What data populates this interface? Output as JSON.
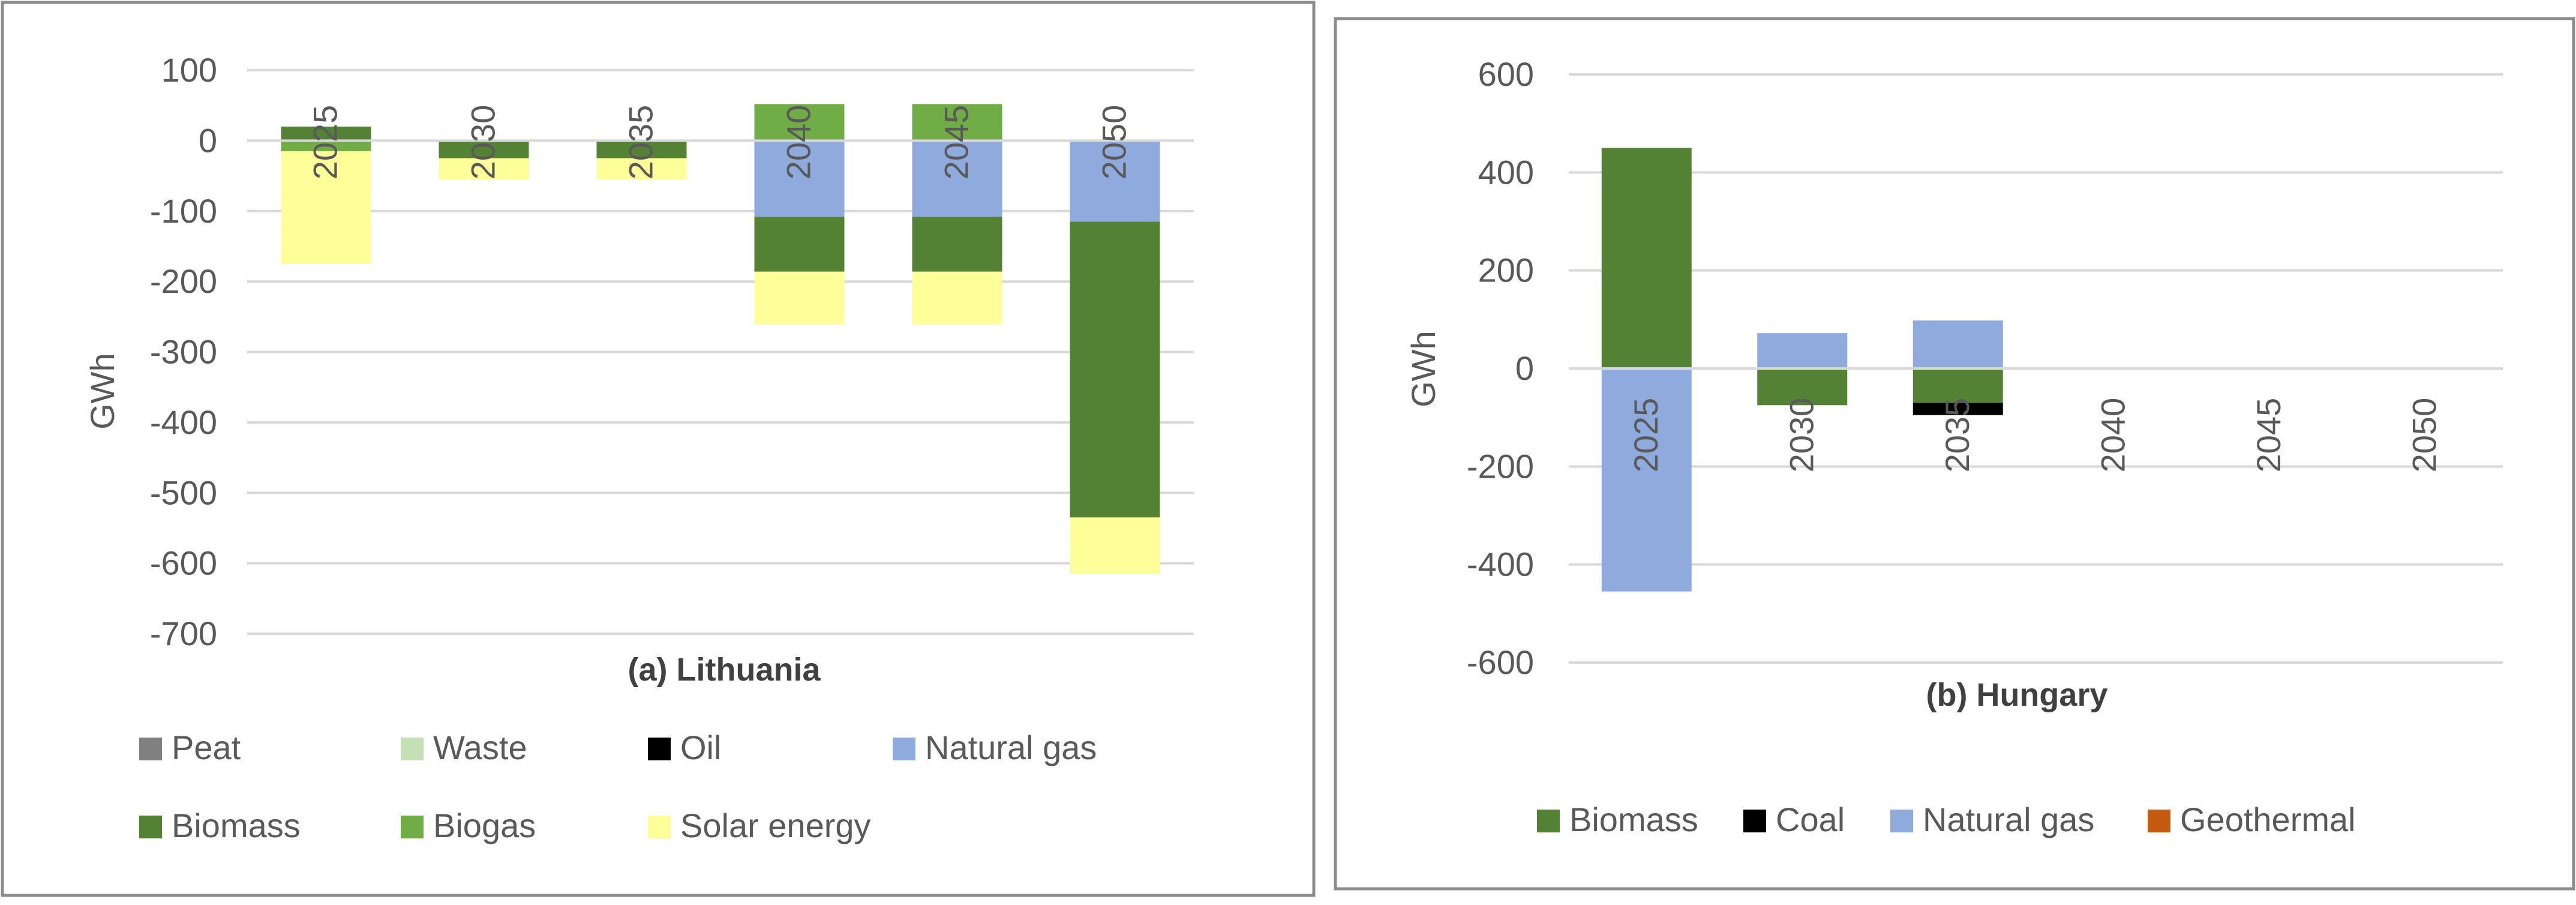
{
  "chart_data": [
    {
      "type": "bar",
      "stacked": true,
      "title": "(a) Lithuania",
      "xlabel": "",
      "ylabel": "GWh",
      "ylim": [
        -700,
        100
      ],
      "yticks": [
        100,
        0,
        -100,
        -200,
        -300,
        -400,
        -500,
        -600,
        -700
      ],
      "categories": [
        "2025",
        "2030",
        "2035",
        "2040",
        "2045",
        "2050"
      ],
      "series": [
        {
          "name": "Peat",
          "color": "#808080",
          "values": [
            0,
            0,
            0,
            0,
            0,
            0
          ]
        },
        {
          "name": "Waste",
          "color": "#c5e0b4",
          "values": [
            0,
            0,
            0,
            0,
            0,
            0
          ]
        },
        {
          "name": "Oil",
          "color": "#000000",
          "values": [
            0,
            0,
            0,
            0,
            0,
            0
          ]
        },
        {
          "name": "Natural gas",
          "color": "#8faadc",
          "values": [
            0,
            0,
            0,
            -108,
            -108,
            -115
          ]
        },
        {
          "name": "Biomass",
          "color": "#548235",
          "values": [
            20,
            -25,
            -25,
            -78,
            -78,
            -420
          ]
        },
        {
          "name": "Biogas",
          "color": "#70ad47",
          "values": [
            -15,
            0,
            0,
            52,
            52,
            0
          ]
        },
        {
          "name": "Solar energy",
          "color": "#ffff99",
          "values": [
            -160,
            -30,
            -30,
            -75,
            -75,
            -80
          ]
        }
      ],
      "legend": "bottom"
    },
    {
      "type": "bar",
      "stacked": true,
      "title": "(b) Hungary",
      "xlabel": "",
      "ylabel": "GWh",
      "ylim": [
        -600,
        600
      ],
      "yticks": [
        600,
        400,
        200,
        0,
        -200,
        -400,
        -600
      ],
      "categories": [
        "2025",
        "2030",
        "2035",
        "2040",
        "2045",
        "2050"
      ],
      "series": [
        {
          "name": "Biomass",
          "color": "#548235",
          "values": [
            450,
            -75,
            -70,
            0,
            0,
            0
          ]
        },
        {
          "name": "Coal",
          "color": "#000000",
          "values": [
            0,
            0,
            -25,
            0,
            0,
            0
          ]
        },
        {
          "name": "Natural gas",
          "color": "#8faadc",
          "values": [
            -455,
            72,
            98,
            0,
            0,
            0
          ]
        },
        {
          "name": "Geothermal",
          "color": "#c55a11",
          "values": [
            0,
            0,
            0,
            0,
            0,
            0
          ]
        }
      ],
      "legend": "bottom"
    }
  ]
}
